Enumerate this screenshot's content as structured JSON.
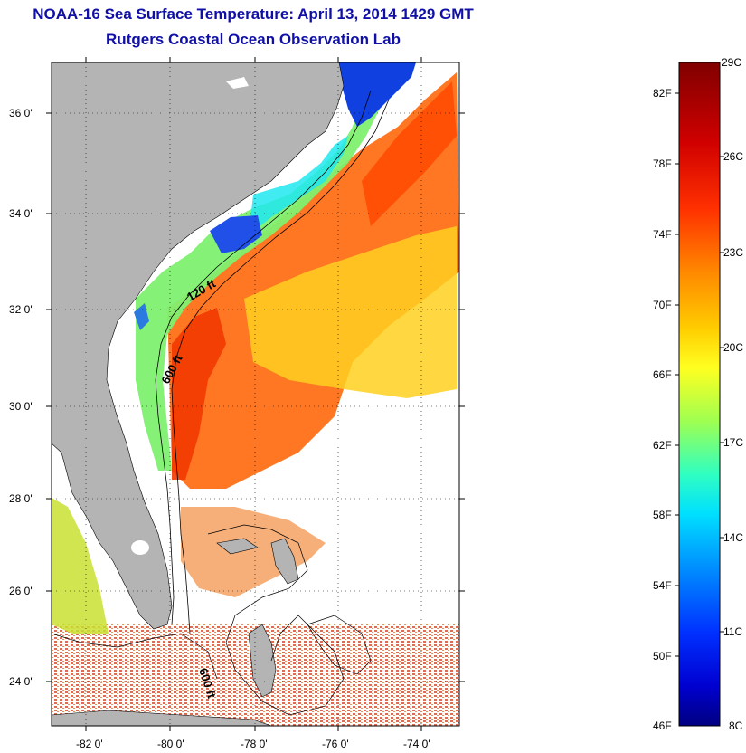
{
  "title": "NOAA-16 Sea Surface Temperature:  April 13, 2014 1429 GMT",
  "subtitle": "Rutgers Coastal Ocean Observation Lab",
  "map": {
    "lat_ticks": [
      "36 0'",
      "34 0'",
      "32 0'",
      "30 0'",
      "28 0'",
      "26 0'",
      "24 0'"
    ],
    "lon_ticks": [
      "-82 0'",
      "-80 0'",
      "-78 0'",
      "-76 0'",
      "-74 0'"
    ],
    "contour_labels": [
      "120 ft",
      "600 ft",
      "600 ft"
    ],
    "land_color": "#b4b4b4",
    "cloud_color": "#ffffff"
  },
  "colorbar": {
    "fahrenheit_labels": [
      "82F",
      "78F",
      "74F",
      "70F",
      "66F",
      "62F",
      "58F",
      "54F",
      "50F",
      "46F"
    ],
    "celsius_labels": [
      "29C",
      "26C",
      "23C",
      "20C",
      "17C",
      "14C",
      "11C",
      "8C"
    ],
    "colors": [
      "#800000",
      "#e00000",
      "#ff5000",
      "#ffa000",
      "#ffee00",
      "#a0ff60",
      "#00ffff",
      "#0090ff",
      "#0020ff",
      "#000090"
    ]
  }
}
